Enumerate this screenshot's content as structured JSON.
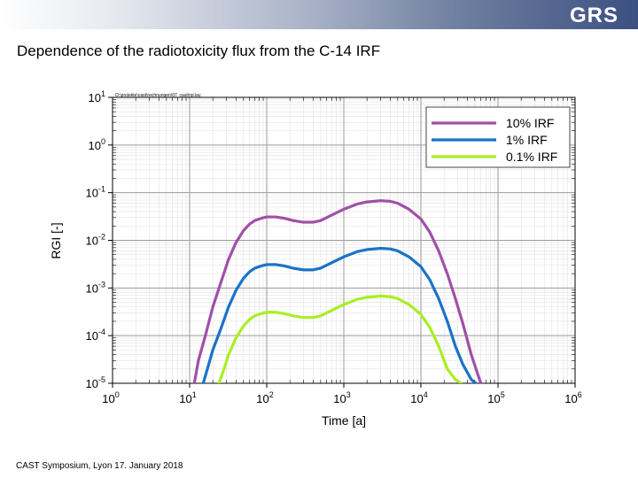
{
  "slide": {
    "logo_text": "GRS",
    "title": "Dependence of the radiotoxicity flux from the C-14 IRF",
    "footer": "CAST Symposium, Lyon 17. January 2018"
  },
  "chart_data": {
    "type": "line",
    "title": "",
    "file_path_note": "O:\\projekte\\cast\\rechnungen\\07_cast\\rgi.lay",
    "xlabel": "Time [a]",
    "ylabel": "RGI [-]",
    "xscale": "log",
    "yscale": "log",
    "xlim": [
      1,
      1000000
    ],
    "ylim": [
      1e-05,
      10
    ],
    "x_ticks": [
      1,
      10,
      100,
      1000,
      10000,
      100000,
      1000000
    ],
    "x_tick_labels": [
      {
        "base": "10",
        "exp": "0"
      },
      {
        "base": "10",
        "exp": "1"
      },
      {
        "base": "10",
        "exp": "2"
      },
      {
        "base": "10",
        "exp": "3"
      },
      {
        "base": "10",
        "exp": "4"
      },
      {
        "base": "10",
        "exp": "5"
      },
      {
        "base": "10",
        "exp": "6"
      }
    ],
    "y_ticks": [
      1e-05,
      0.0001,
      0.001,
      0.01,
      0.1,
      1,
      10
    ],
    "y_tick_labels": [
      {
        "base": "10",
        "exp": "-5"
      },
      {
        "base": "10",
        "exp": "-4"
      },
      {
        "base": "10",
        "exp": "-3"
      },
      {
        "base": "10",
        "exp": "-2"
      },
      {
        "base": "10",
        "exp": "-1"
      },
      {
        "base": "10",
        "exp": "0"
      },
      {
        "base": "10",
        "exp": "1"
      }
    ],
    "grid": true,
    "legend_position": "top-right",
    "series": [
      {
        "name": "10% IRF",
        "color": "#a050a8",
        "x": [
          11.5,
          13,
          16,
          20,
          25,
          32,
          40,
          50,
          60,
          70,
          85,
          100,
          130,
          170,
          220,
          300,
          400,
          500,
          700,
          1000,
          1500,
          2000,
          3000,
          4000,
          5000,
          7000,
          10000,
          13000,
          17000,
          22000,
          28000,
          35000,
          45000,
          55000,
          60000
        ],
        "y": [
          1e-05,
          3e-05,
          0.0001,
          0.0004,
          0.0012,
          0.004,
          0.009,
          0.016,
          0.022,
          0.026,
          0.029,
          0.031,
          0.031,
          0.029,
          0.026,
          0.024,
          0.024,
          0.026,
          0.034,
          0.045,
          0.058,
          0.064,
          0.068,
          0.066,
          0.06,
          0.045,
          0.028,
          0.015,
          0.006,
          0.002,
          0.0006,
          0.00018,
          4e-05,
          1.5e-05,
          1e-05
        ]
      },
      {
        "name": "1% IRF",
        "color": "#1a73c8",
        "x": [
          15,
          17,
          20,
          25,
          32,
          40,
          50,
          60,
          70,
          85,
          100,
          130,
          170,
          220,
          300,
          400,
          500,
          700,
          1000,
          1500,
          2000,
          3000,
          4000,
          5000,
          7000,
          10000,
          13000,
          17000,
          22000,
          28000,
          35000,
          45000,
          52000
        ],
        "y": [
          1e-05,
          2e-05,
          5e-05,
          0.00013,
          0.0004,
          0.0009,
          0.0016,
          0.0022,
          0.0026,
          0.0029,
          0.0031,
          0.0031,
          0.0029,
          0.0026,
          0.0024,
          0.0024,
          0.0026,
          0.0034,
          0.0045,
          0.0058,
          0.0064,
          0.0068,
          0.0066,
          0.006,
          0.0045,
          0.0028,
          0.0015,
          0.0006,
          0.0002,
          6e-05,
          2.5e-05,
          1.2e-05,
          1e-05
        ]
      },
      {
        "name": "0.1% IRF",
        "color": "#aaee22",
        "x": [
          24,
          28,
          32,
          40,
          50,
          60,
          70,
          85,
          100,
          130,
          170,
          220,
          300,
          400,
          500,
          700,
          1000,
          1500,
          2000,
          3000,
          4000,
          5000,
          7000,
          10000,
          13000,
          17000,
          22000,
          28000,
          33000
        ],
        "y": [
          1e-05,
          2e-05,
          4e-05,
          9e-05,
          0.00016,
          0.00022,
          0.00026,
          0.00029,
          0.00031,
          0.00031,
          0.00029,
          0.00026,
          0.00024,
          0.00024,
          0.00026,
          0.00034,
          0.00045,
          0.00058,
          0.00064,
          0.00068,
          0.00066,
          0.0006,
          0.00045,
          0.00028,
          0.00015,
          6e-05,
          2e-05,
          1.2e-05,
          1e-05
        ]
      }
    ]
  }
}
